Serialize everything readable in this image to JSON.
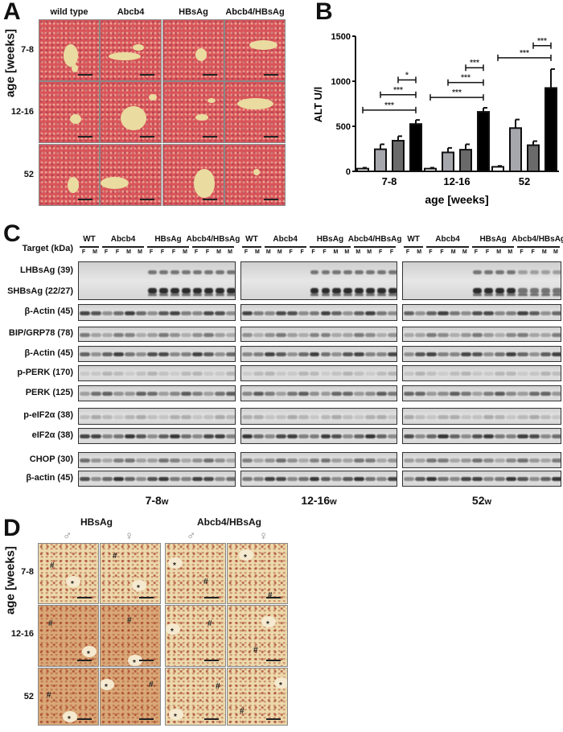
{
  "panelA": {
    "label": "A",
    "ylabel": "age [weeks]",
    "columns": [
      "wild type",
      "Abcb4",
      "HBsAg",
      "Abcb4/HBsAg"
    ],
    "rows": [
      "7-8",
      "12-16",
      "52"
    ]
  },
  "panelB": {
    "label": "B"
  },
  "chart_data": {
    "type": "bar",
    "categories": [
      "7-8",
      "12-16",
      "52"
    ],
    "xlabel": "age [weeks]",
    "ylabel": "ALT U/l",
    "ylim": [
      0,
      1500
    ],
    "yticks": [
      0,
      500,
      1000,
      1500
    ],
    "bar_colors": [
      "#ffffff",
      "#a6a6ad",
      "#6a6a6a",
      "#000000"
    ],
    "series": [
      {
        "values": [
          30,
          30,
          50
        ],
        "errors": [
          40,
          40,
          60
        ]
      },
      {
        "values": [
          245,
          210,
          480
        ],
        "errors": [
          300,
          260,
          575
        ]
      },
      {
        "values": [
          340,
          240,
          290
        ],
        "errors": [
          390,
          300,
          335
        ]
      },
      {
        "values": [
          525,
          660,
          925
        ],
        "errors": [
          570,
          705,
          1135
        ]
      }
    ],
    "significance": [
      {
        "group": 0,
        "from": 0,
        "to": 3,
        "y": 680,
        "label": "***"
      },
      {
        "group": 0,
        "from": 1,
        "to": 3,
        "y": 850,
        "label": "***"
      },
      {
        "group": 0,
        "from": 2,
        "to": 3,
        "y": 1015,
        "label": "*"
      },
      {
        "group": 1,
        "from": 0,
        "to": 3,
        "y": 820,
        "label": "***"
      },
      {
        "group": 1,
        "from": 1,
        "to": 3,
        "y": 985,
        "label": "***"
      },
      {
        "group": 1,
        "from": 2,
        "to": 3,
        "y": 1150,
        "label": "***"
      },
      {
        "group": 2,
        "from": 0,
        "to": 3,
        "y": 1260,
        "label": "***"
      },
      {
        "group": 2,
        "from": 2,
        "to": 3,
        "y": 1395,
        "label": "***"
      }
    ]
  },
  "panelC": {
    "label": "C",
    "target_header": "Target (kDa)",
    "groups": [
      "WT",
      "Abcb4",
      "HBsAg",
      "Abcb4/HBsAg"
    ],
    "blocks": [
      {
        "title": "7-8",
        "suffix": "w",
        "sexes": [
          [
            "F",
            "M"
          ],
          [
            "F",
            "F",
            "M",
            "M"
          ],
          [
            "F",
            "F",
            "F",
            "M"
          ],
          [
            "F",
            "F",
            "M",
            "M"
          ]
        ]
      },
      {
        "title": "12-16",
        "suffix": "w",
        "sexes": [
          [
            "F",
            "M"
          ],
          [
            "M",
            "M",
            "F",
            "F"
          ],
          [
            "F",
            "F",
            "M",
            "M"
          ],
          [
            "M",
            "M",
            "F",
            "F"
          ]
        ]
      },
      {
        "title": "52",
        "suffix": "w",
        "sexes": [
          [
            "F",
            "M"
          ],
          [
            "F",
            "F",
            "M",
            "M"
          ],
          [
            "F",
            "F",
            "M",
            "M"
          ],
          [
            "F",
            "F",
            "M",
            "M"
          ]
        ]
      }
    ],
    "targets": [
      "LHBsAg (39)",
      "SHBsAg (22/27)",
      "β-Actin (45)",
      "BIP/GRP78 (78)",
      "β-Actin (45)",
      "p-PERK (170)",
      "PERK (125)",
      "p-eIF2α (38)",
      "eIF2α (38)",
      "CHOP (30)",
      "β-actin (45)"
    ]
  },
  "panelD": {
    "label": "D",
    "ylabel": "age [weeks]",
    "groups": [
      "HBsAg",
      "Abcb4/HBsAg"
    ],
    "male_symbol": "♂",
    "female_symbol": "♀",
    "rows": [
      "7-8",
      "12-16",
      "52"
    ],
    "marks": {
      "star": "*",
      "hash": "#"
    }
  }
}
